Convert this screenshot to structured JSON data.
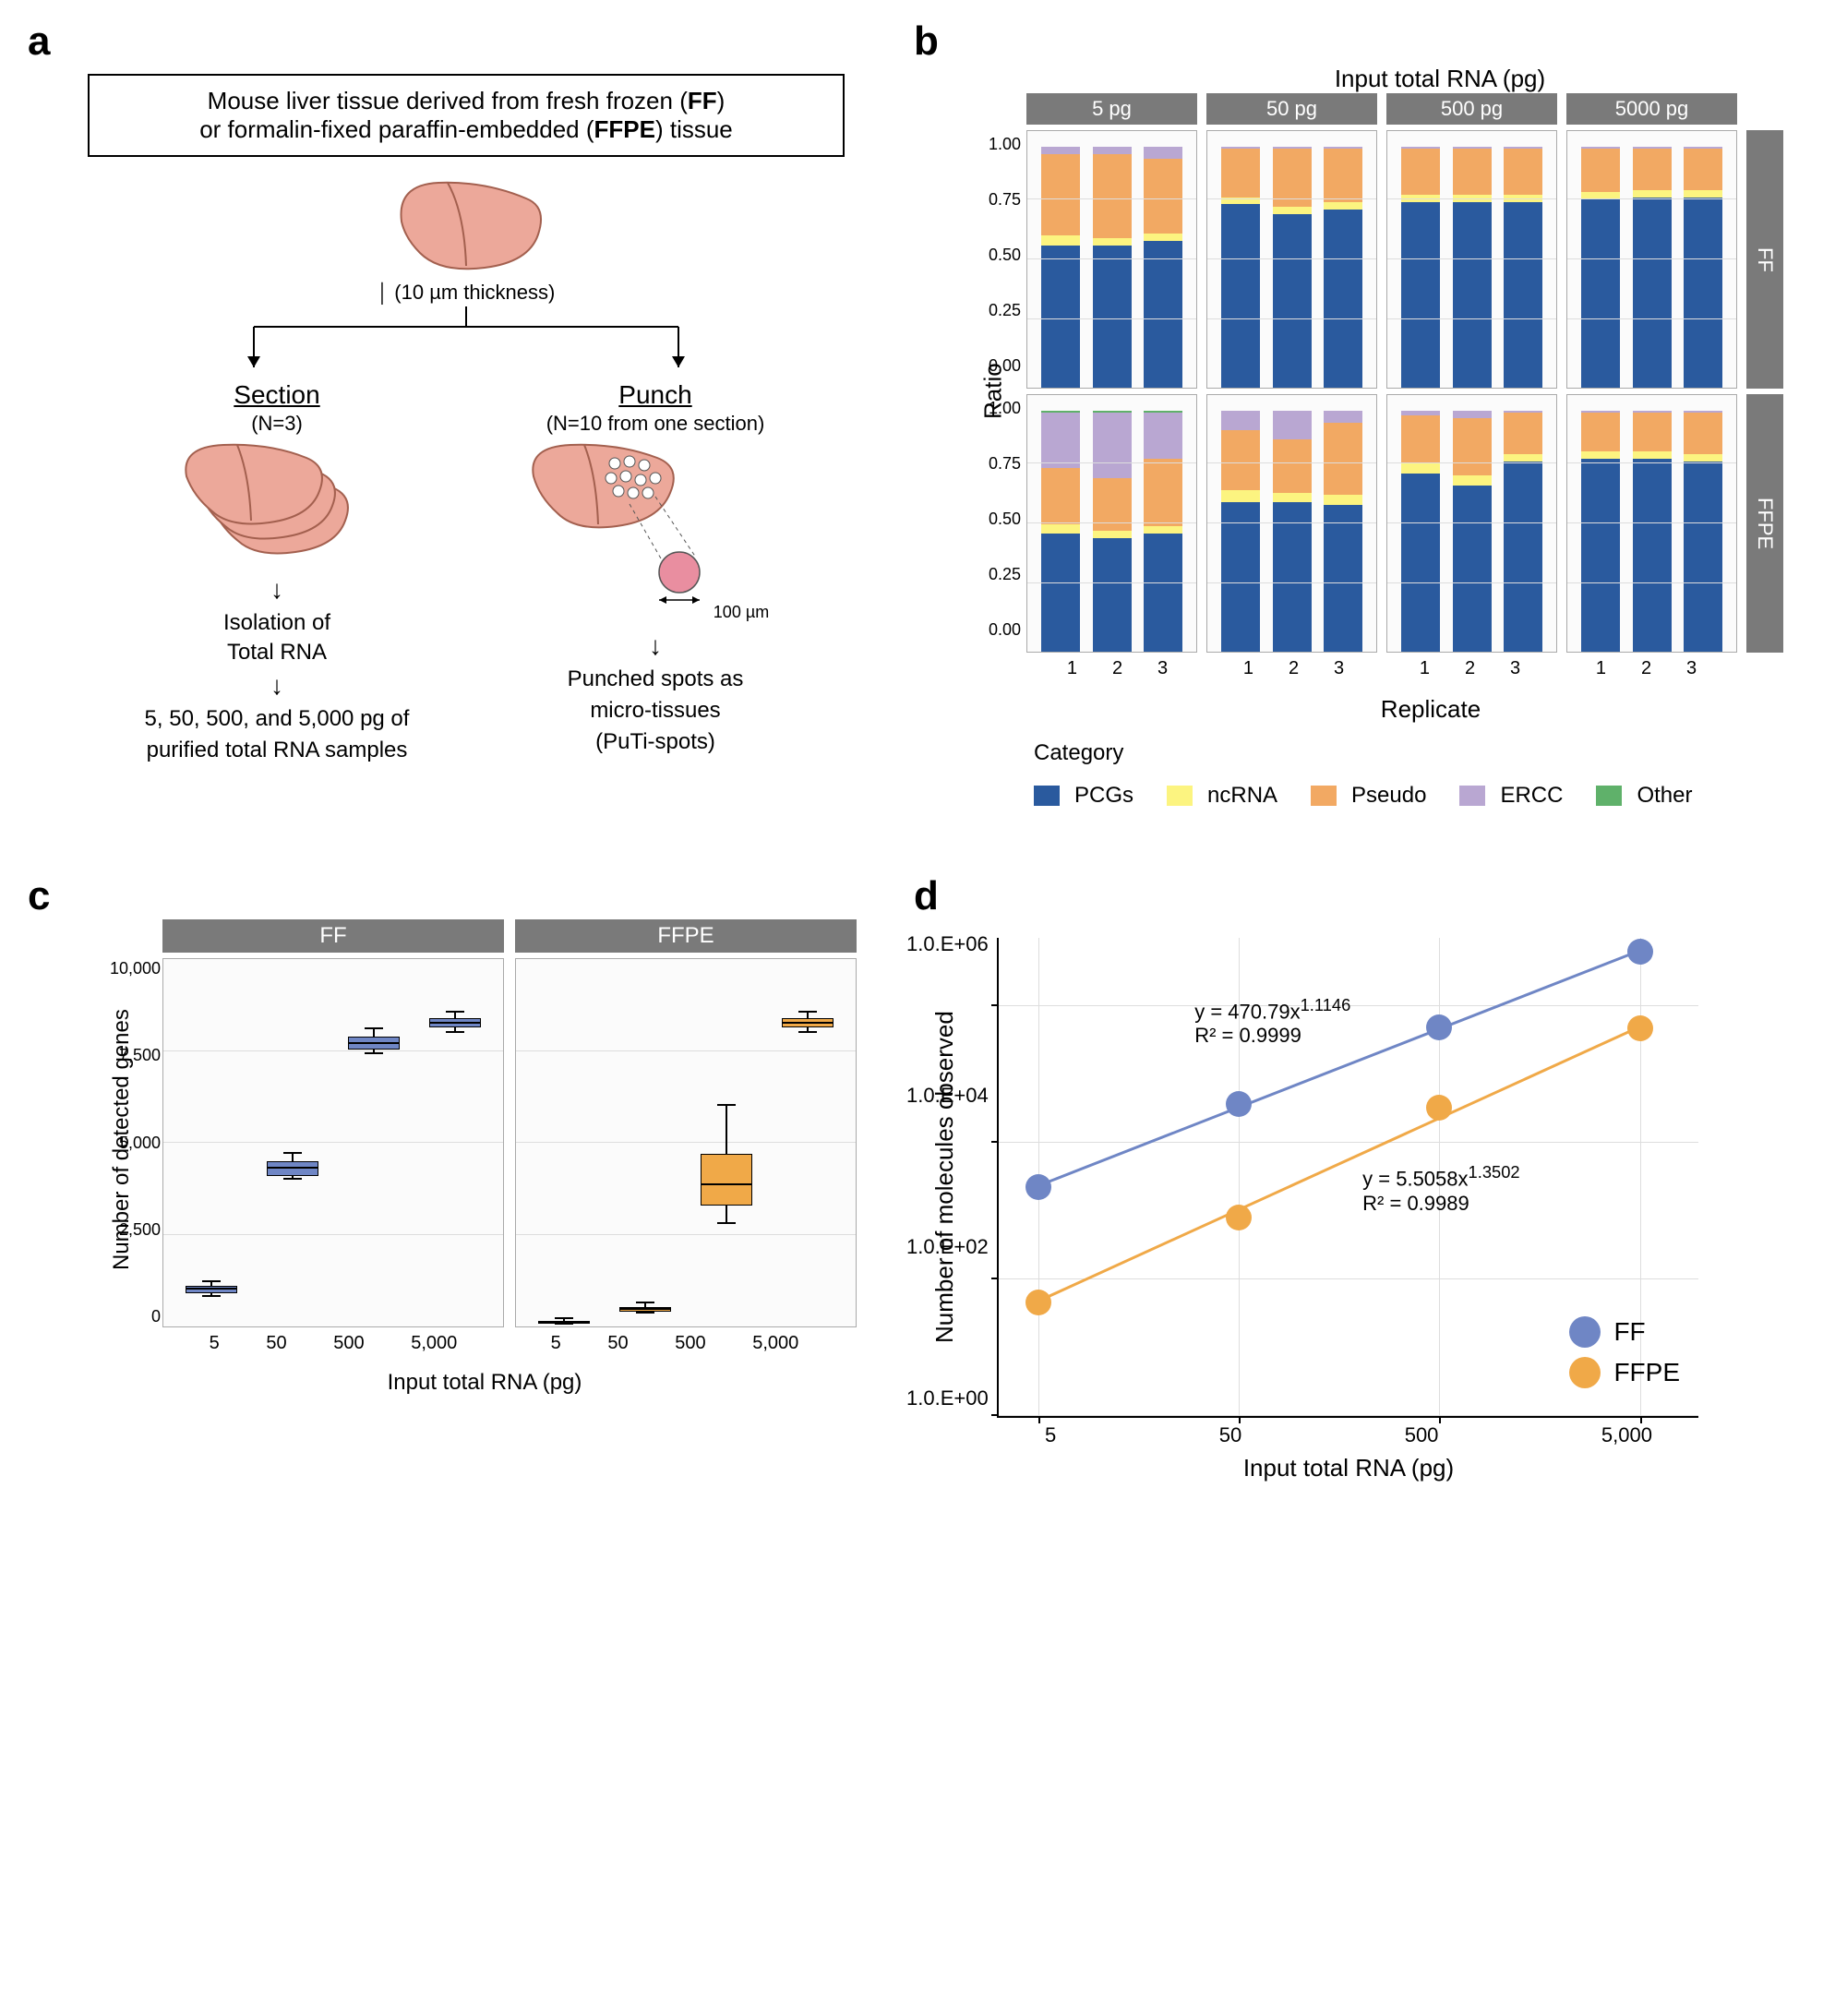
{
  "panel_labels": {
    "a": "a",
    "b": "b",
    "c": "c",
    "d": "d"
  },
  "colors": {
    "pcgs": "#2a5a9e",
    "ncrna": "#fcf480",
    "pseudo": "#f2a963",
    "ercc": "#b9a7d2",
    "other": "#5fb16a",
    "strip_bg": "#7a7a7a",
    "ff_box": "#6f86c5",
    "ffpe_box": "#f0a948",
    "ff_line": "#6f86c5",
    "ffpe_line": "#f0a948",
    "liver_fill": "#eca89a",
    "liver_stroke": "#a3604f"
  },
  "panel_a": {
    "box_text_l1": "Mouse liver tissue derived from fresh frozen (",
    "box_ff": "FF",
    "box_text_mid": ")",
    "box_text_l2a": "or formalin-fixed paraffin-embedded (",
    "box_ffpe": "FFPE",
    "box_text_l2b": ") tissue",
    "thickness": "(10 µm thickness)",
    "section_title": "Section",
    "section_n": "(N=3)",
    "punch_title": "Punch",
    "punch_n": "(N=10 from one section)",
    "dim": "100 µm",
    "iso_l1": "Isolation of",
    "iso_l2": "Total RNA",
    "final_section_l1": "5, 50, 500, and 5,000 pg of",
    "final_section_l2": "purified total RNA samples",
    "final_punch_l1": "Punched spots as",
    "final_punch_l2": "micro-tissues",
    "final_punch_l3": "(PuTi-spots)"
  },
  "panel_b": {
    "title_top": "Input total RNA (pg)",
    "col_labels": [
      "5 pg",
      "50 pg",
      "500 pg",
      "5000 pg"
    ],
    "row_labels": [
      "FF",
      "FFPE"
    ],
    "y_label": "Ratio",
    "x_label": "Replicate",
    "y_ticks": [
      "1.00",
      "0.75",
      "0.50",
      "0.25",
      "0.00"
    ],
    "x_ticks": [
      "1",
      "2",
      "3"
    ],
    "legend_title": "Category",
    "legend_items": [
      {
        "label": "PCGs",
        "color_key": "pcgs"
      },
      {
        "label": "ncRNA",
        "color_key": "ncrna"
      },
      {
        "label": "Pseudo",
        "color_key": "pseudo"
      },
      {
        "label": "ERCC",
        "color_key": "ercc"
      },
      {
        "label": "Other",
        "color_key": "other"
      }
    ],
    "facets": {
      "FF": {
        "5": [
          {
            "pcgs": 0.59,
            "ncrna": 0.04,
            "pseudo": 0.34,
            "ercc": 0.03,
            "other": 0.0
          },
          {
            "pcgs": 0.59,
            "ncrna": 0.03,
            "pseudo": 0.35,
            "ercc": 0.03,
            "other": 0.0
          },
          {
            "pcgs": 0.61,
            "ncrna": 0.03,
            "pseudo": 0.31,
            "ercc": 0.05,
            "other": 0.0
          }
        ],
        "50": [
          {
            "pcgs": 0.76,
            "ncrna": 0.03,
            "pseudo": 0.2,
            "ercc": 0.01,
            "other": 0.0
          },
          {
            "pcgs": 0.72,
            "ncrna": 0.03,
            "pseudo": 0.24,
            "ercc": 0.01,
            "other": 0.0
          },
          {
            "pcgs": 0.74,
            "ncrna": 0.03,
            "pseudo": 0.22,
            "ercc": 0.01,
            "other": 0.0
          }
        ],
        "500": [
          {
            "pcgs": 0.77,
            "ncrna": 0.03,
            "pseudo": 0.19,
            "ercc": 0.01,
            "other": 0.0
          },
          {
            "pcgs": 0.77,
            "ncrna": 0.03,
            "pseudo": 0.19,
            "ercc": 0.01,
            "other": 0.0
          },
          {
            "pcgs": 0.77,
            "ncrna": 0.03,
            "pseudo": 0.19,
            "ercc": 0.01,
            "other": 0.0
          }
        ],
        "5000": [
          {
            "pcgs": 0.78,
            "ncrna": 0.03,
            "pseudo": 0.18,
            "ercc": 0.01,
            "other": 0.0
          },
          {
            "pcgs": 0.79,
            "ncrna": 0.03,
            "pseudo": 0.17,
            "ercc": 0.01,
            "other": 0.0
          },
          {
            "pcgs": 0.79,
            "ncrna": 0.03,
            "pseudo": 0.17,
            "ercc": 0.01,
            "other": 0.0
          }
        ]
      },
      "FFPE": {
        "5": [
          {
            "pcgs": 0.49,
            "ncrna": 0.04,
            "pseudo": 0.23,
            "ercc": 0.23,
            "other": 0.01
          },
          {
            "pcgs": 0.47,
            "ncrna": 0.03,
            "pseudo": 0.22,
            "ercc": 0.27,
            "other": 0.01
          },
          {
            "pcgs": 0.49,
            "ncrna": 0.03,
            "pseudo": 0.28,
            "ercc": 0.19,
            "other": 0.01
          }
        ],
        "50": [
          {
            "pcgs": 0.62,
            "ncrna": 0.05,
            "pseudo": 0.25,
            "ercc": 0.08,
            "other": 0.0
          },
          {
            "pcgs": 0.62,
            "ncrna": 0.04,
            "pseudo": 0.22,
            "ercc": 0.12,
            "other": 0.0
          },
          {
            "pcgs": 0.61,
            "ncrna": 0.04,
            "pseudo": 0.3,
            "ercc": 0.05,
            "other": 0.0
          }
        ],
        "500": [
          {
            "pcgs": 0.74,
            "ncrna": 0.04,
            "pseudo": 0.2,
            "ercc": 0.02,
            "other": 0.0
          },
          {
            "pcgs": 0.69,
            "ncrna": 0.04,
            "pseudo": 0.24,
            "ercc": 0.03,
            "other": 0.0
          },
          {
            "pcgs": 0.79,
            "ncrna": 0.03,
            "pseudo": 0.17,
            "ercc": 0.01,
            "other": 0.0
          }
        ],
        "5000": [
          {
            "pcgs": 0.8,
            "ncrna": 0.03,
            "pseudo": 0.16,
            "ercc": 0.01,
            "other": 0.0
          },
          {
            "pcgs": 0.8,
            "ncrna": 0.03,
            "pseudo": 0.16,
            "ercc": 0.01,
            "other": 0.0
          },
          {
            "pcgs": 0.79,
            "ncrna": 0.03,
            "pseudo": 0.17,
            "ercc": 0.01,
            "other": 0.0
          }
        ]
      }
    }
  },
  "panel_c": {
    "strip_labels": [
      "FF",
      "FFPE"
    ],
    "y_label": "Number of detected genes",
    "x_label": "Input total RNA (pg)",
    "y_ticks": [
      "10,000",
      "7,500",
      "5,000",
      "2,500",
      "0"
    ],
    "y_max": 10000,
    "x_ticks": [
      "5",
      "50",
      "500",
      "5,000"
    ],
    "box_data": {
      "FF": [
        {
          "x": "5",
          "low": 800,
          "q1": 900,
          "med": 1000,
          "q3": 1100,
          "high": 1200
        },
        {
          "x": "50",
          "low": 4000,
          "q1": 4100,
          "med": 4300,
          "q3": 4500,
          "high": 4700
        },
        {
          "x": "500",
          "low": 7400,
          "q1": 7550,
          "med": 7700,
          "q3": 7900,
          "high": 8100
        },
        {
          "x": "5000",
          "low": 8000,
          "q1": 8150,
          "med": 8250,
          "q3": 8400,
          "high": 8550
        }
      ],
      "FFPE": [
        {
          "x": "5",
          "low": 60,
          "q1": 80,
          "med": 100,
          "q3": 150,
          "high": 200
        },
        {
          "x": "50",
          "low": 350,
          "q1": 400,
          "med": 450,
          "q3": 530,
          "high": 620
        },
        {
          "x": "500",
          "low": 2800,
          "q1": 3300,
          "med": 3850,
          "q3": 4700,
          "high": 6000
        },
        {
          "x": "5000",
          "low": 8000,
          "q1": 8150,
          "med": 8250,
          "q3": 8400,
          "high": 8550
        }
      ]
    },
    "box_colors": {
      "FF": "ff_box",
      "FFPE": "ffpe_box"
    }
  },
  "panel_d": {
    "y_label": "Number of molecules observed",
    "x_label": "Input total RNA (pg)",
    "y_ticks": [
      "1.0.E+06",
      "1.0.E+04",
      "1.0.E+02",
      "1.0.E+00"
    ],
    "x_ticks": [
      "5",
      "50",
      "500",
      "5,000"
    ],
    "x_log_range": [
      0.5,
      4.0
    ],
    "y_log_range": [
      0,
      7.0
    ],
    "series": [
      {
        "name": "FF",
        "color_key": "ff_line",
        "eq_l1": "y = 470.79x",
        "eq_exp": "1.1146",
        "eq_l2": "R² = 0.9999",
        "eq_pos": {
          "left_pct": 28,
          "top_pct": 12
        },
        "points": [
          {
            "x": 5,
            "y": 2200.0
          },
          {
            "x": 50,
            "y": 35000.0
          },
          {
            "x": 500,
            "y": 470000.0
          },
          {
            "x": 5000,
            "y": 5900000.0
          }
        ]
      },
      {
        "name": "FFPE",
        "color_key": "ffpe_line",
        "eq_l1": "y = 5.5058x",
        "eq_exp": "1.3502",
        "eq_l2": "R² = 0.9989",
        "eq_pos": {
          "left_pct": 52,
          "top_pct": 47
        },
        "points": [
          {
            "x": 5,
            "y": 45.0
          },
          {
            "x": 50,
            "y": 780.0
          },
          {
            "x": 500,
            "y": 31000.0
          },
          {
            "x": 5000,
            "y": 450000.0
          }
        ]
      }
    ],
    "legend": [
      {
        "label": "FF",
        "color_key": "ff_line"
      },
      {
        "label": "FFPE",
        "color_key": "ffpe_line"
      }
    ]
  }
}
